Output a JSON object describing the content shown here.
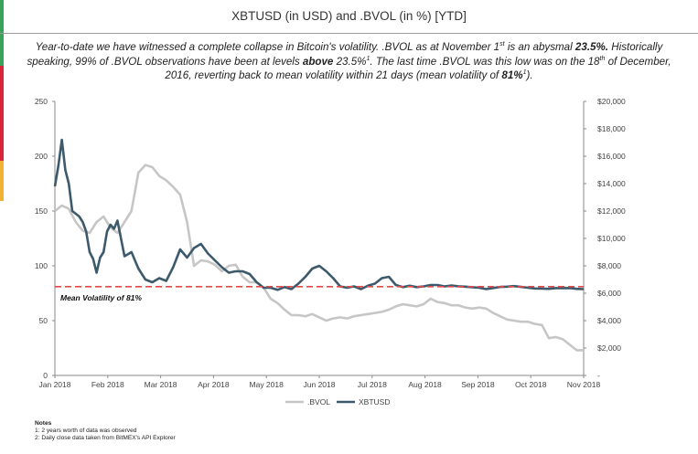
{
  "title": "XBTUSD (in USD) and .BVOL (in %) [YTD]",
  "summary": {
    "p1": "Year-to-date we have witnessed a complete collapse in Bitcoin's volatility. .BVOL as at November 1",
    "p1_sup": "st",
    "p2": " is an abysmal ",
    "p2_bold": "23.5%.",
    "p3": " Historically speaking, 99% of .BVOL observations have been at levels ",
    "p3_bold": "above",
    "p4": " 23.5%",
    "p4_sup": "1",
    "p5": ". The last time .BVOL was this low was on the 18",
    "p5_sup": "th",
    "p6": " of December, 2016, reverting back to mean volatility within 21 days (mean volatility of ",
    "p6_bold": "81%",
    "p6_sup": "1",
    "p7": ")."
  },
  "colors": {
    "bvol": "#c6c6c6",
    "xbtusd": "#3c5a6b",
    "mean": "#e04b4b",
    "accent": [
      "#3aa35a",
      "#d8263a",
      "#f2b234"
    ]
  },
  "chart_data": {
    "type": "line",
    "x_labels": [
      "Jan 2018",
      "Feb 2018",
      "Mar 2018",
      "Apr 2018",
      "May 2018",
      "Jun 2018",
      "Jul 2018",
      "Aug 2018",
      "Sep 2018",
      "Oct 2018",
      "Nov 2018"
    ],
    "left_axis": {
      "ticks": [
        "0",
        "50",
        "100",
        "150",
        "200",
        "250"
      ],
      "range": [
        0,
        250
      ]
    },
    "right_axis": {
      "ticks": [
        "-",
        "$2,000",
        "$4,000",
        "$6,000",
        "$8,000",
        "$10,000",
        "$12,000",
        "$14,000",
        "$16,000",
        "$18,000",
        "$20,000"
      ],
      "range": [
        0,
        20000
      ]
    },
    "mean_line": {
      "value": 81,
      "label": "Mean Volatility of 81%"
    },
    "series": [
      {
        "name": ".BVOL",
        "axis": "left",
        "x": [
          0,
          4,
          8,
          12,
          16,
          20,
          24,
          28,
          32,
          36,
          40,
          44,
          48,
          52,
          56,
          60,
          64,
          68,
          72,
          76,
          80,
          84,
          88,
          92,
          96,
          100,
          104,
          108,
          112,
          116,
          120,
          124,
          128,
          132,
          136,
          140,
          144,
          148,
          152,
          156,
          160,
          164,
          168,
          172,
          176,
          180,
          184,
          188,
          192,
          196,
          200,
          204,
          208,
          212,
          216,
          220,
          224,
          228,
          232,
          236,
          240,
          244,
          248,
          252,
          256,
          260,
          264,
          268,
          272,
          276,
          280,
          284,
          288,
          292,
          296,
          300,
          304
        ],
        "y": [
          150,
          155,
          152,
          140,
          132,
          130,
          140,
          145,
          135,
          130,
          140,
          150,
          185,
          192,
          190,
          182,
          178,
          172,
          165,
          140,
          100,
          105,
          104,
          101,
          95,
          100,
          101,
          90,
          85,
          85,
          80,
          70,
          66,
          60,
          55,
          55,
          54,
          56,
          53,
          50,
          52,
          53,
          52,
          54,
          55,
          56,
          57,
          58,
          60,
          63,
          65,
          64,
          63,
          65,
          70,
          67,
          66,
          64,
          64,
          62,
          61,
          62,
          61,
          57,
          54,
          51,
          50,
          49,
          49,
          47,
          46,
          34,
          35,
          33,
          28,
          23,
          23
        ]
      },
      {
        "name": "XBTUSD",
        "axis": "right",
        "x": [
          0,
          2,
          4,
          6,
          8,
          10,
          12,
          14,
          16,
          18,
          20,
          22,
          24,
          26,
          28,
          30,
          32,
          34,
          36,
          40,
          44,
          48,
          52,
          56,
          60,
          64,
          68,
          72,
          76,
          80,
          84,
          88,
          92,
          96,
          100,
          104,
          108,
          112,
          116,
          120,
          124,
          128,
          132,
          136,
          140,
          144,
          148,
          152,
          156,
          160,
          164,
          168,
          172,
          176,
          180,
          184,
          188,
          192,
          196,
          200,
          204,
          208,
          212,
          216,
          220,
          224,
          228,
          232,
          236,
          240,
          244,
          248,
          252,
          256,
          260,
          264,
          268,
          272,
          276,
          280,
          284,
          288,
          292,
          296,
          300,
          304
        ],
        "y": [
          13800,
          15300,
          17200,
          15000,
          14000,
          12000,
          11800,
          11600,
          11200,
          10500,
          9000,
          8500,
          7500,
          8600,
          9000,
          10500,
          11000,
          10700,
          11300,
          8700,
          9000,
          7800,
          7000,
          6800,
          7100,
          6900,
          7900,
          9200,
          8600,
          9300,
          9600,
          8900,
          8400,
          7900,
          7500,
          7600,
          7600,
          7400,
          6800,
          6400,
          6400,
          6250,
          6450,
          6300,
          6700,
          7200,
          7800,
          8000,
          7600,
          7100,
          6500,
          6400,
          6500,
          6300,
          6550,
          6700,
          7100,
          7200,
          6600,
          6450,
          6550,
          6450,
          6500,
          6600,
          6600,
          6500,
          6560,
          6510,
          6480,
          6440,
          6400,
          6300,
          6380,
          6460,
          6480,
          6520,
          6460,
          6400,
          6350,
          6340,
          6320,
          6370,
          6370,
          6380,
          6320,
          6300
        ]
      }
    ],
    "x_domain": [
      0,
      304
    ],
    "legend": [
      ".BVOL",
      "XBTUSD"
    ],
    "legend_position": "bottom"
  },
  "notes": {
    "heading": "Notes",
    "line1": "1: 2 years worth of data was observed",
    "line2": "2: Daily close data taken from BitMEX's API Explorer"
  }
}
